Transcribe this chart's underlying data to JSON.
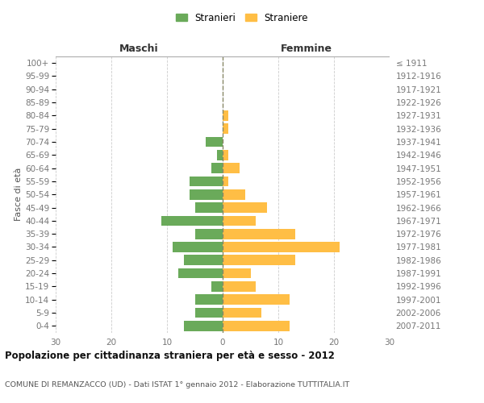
{
  "age_groups": [
    "0-4",
    "5-9",
    "10-14",
    "15-19",
    "20-24",
    "25-29",
    "30-34",
    "35-39",
    "40-44",
    "45-49",
    "50-54",
    "55-59",
    "60-64",
    "65-69",
    "70-74",
    "75-79",
    "80-84",
    "85-89",
    "90-94",
    "95-99",
    "100+"
  ],
  "birth_years": [
    "2007-2011",
    "2002-2006",
    "1997-2001",
    "1992-1996",
    "1987-1991",
    "1982-1986",
    "1977-1981",
    "1972-1976",
    "1967-1971",
    "1962-1966",
    "1957-1961",
    "1952-1956",
    "1947-1951",
    "1942-1946",
    "1937-1941",
    "1932-1936",
    "1927-1931",
    "1922-1926",
    "1917-1921",
    "1912-1916",
    "≤ 1911"
  ],
  "maschi": [
    7,
    5,
    5,
    2,
    8,
    7,
    9,
    5,
    11,
    5,
    6,
    6,
    2,
    1,
    3,
    0,
    0,
    0,
    0,
    0,
    0
  ],
  "femmine": [
    12,
    7,
    12,
    6,
    5,
    13,
    21,
    13,
    6,
    8,
    4,
    1,
    3,
    1,
    0,
    1,
    1,
    0,
    0,
    0,
    0
  ],
  "maschi_color": "#6aaa5a",
  "femmine_color": "#ffbe45",
  "center_line_color": "#888866",
  "title": "Popolazione per cittadinanza straniera per età e sesso - 2012",
  "subtitle": "COMUNE DI REMANZACCO (UD) - Dati ISTAT 1° gennaio 2012 - Elaborazione TUTTITALIA.IT",
  "header_left": "Maschi",
  "header_right": "Femmine",
  "ylabel_left": "Fasce di età",
  "legend_maschi": "Stranieri",
  "legend_femmine": "Straniere",
  "xlim": 30,
  "bg_color": "#ffffff",
  "grid_color": "#cccccc"
}
